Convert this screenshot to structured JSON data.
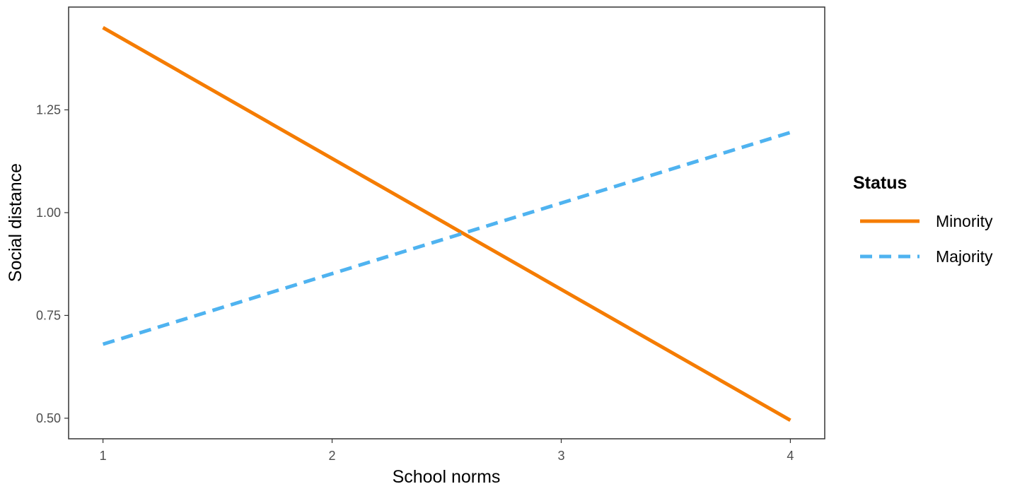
{
  "chart_data": {
    "type": "line",
    "title": "",
    "xlabel": "School norms",
    "ylabel": "Social distance",
    "x": [
      1,
      2,
      3,
      4
    ],
    "xlim": [
      0.85,
      4.15
    ],
    "ylim": [
      0.45,
      1.5
    ],
    "x_ticks": [
      1,
      2,
      3,
      4
    ],
    "x_tick_labels": [
      "1",
      "2",
      "3",
      "4"
    ],
    "y_ticks": [
      0.5,
      0.75,
      1.0,
      1.25
    ],
    "y_tick_labels": [
      "0.50",
      "0.75",
      "1.00",
      "1.25"
    ],
    "grid": false,
    "legend": {
      "title": "Status",
      "position": "right"
    },
    "series": [
      {
        "name": "Minority",
        "x": [
          1,
          4
        ],
        "values": [
          1.45,
          0.495
        ],
        "color": "#F57C00",
        "line_style": "solid"
      },
      {
        "name": "Majority",
        "x": [
          1,
          4
        ],
        "values": [
          0.68,
          1.195
        ],
        "color": "#4FB3F0",
        "line_style": "dashed"
      }
    ]
  }
}
